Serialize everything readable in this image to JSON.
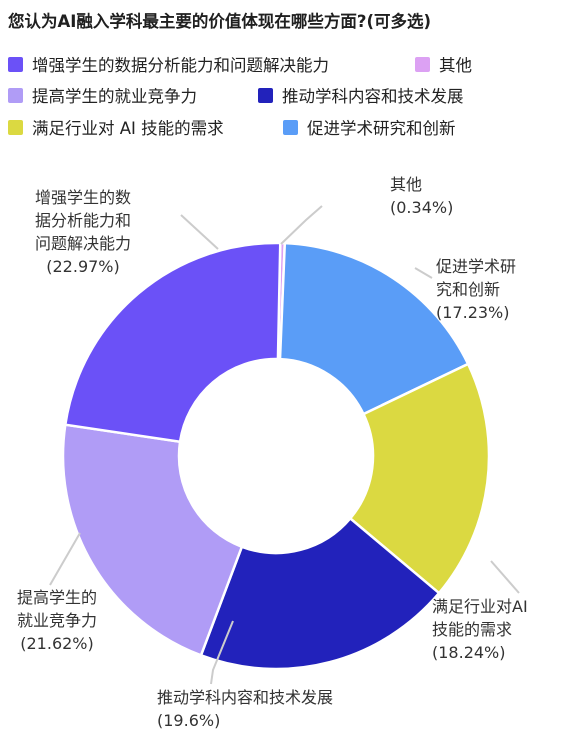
{
  "chart_data": {
    "type": "pie",
    "title": "您认为AI融入学科最主要的价值体现在哪些方面?(可多选)",
    "legend_position": "top",
    "slices": [
      {
        "legend": "增强学生的数据分析能力和问题解决能力",
        "callout_lines": [
          "增强学生的数",
          "据分析能力和",
          "问题解决能力"
        ],
        "pct_text": "(22.97%)",
        "value": 22.97,
        "color": "#6b51f7"
      },
      {
        "legend": "其他",
        "callout_lines": [
          "其他"
        ],
        "pct_text": "(0.34%)",
        "value": 0.34,
        "color": "#dca1f3"
      },
      {
        "legend": "提高学生的就业竞争力",
        "callout_lines": [
          "提高学生的",
          "就业竞争力"
        ],
        "pct_text": "(21.62%)",
        "value": 21.62,
        "color": "#b09cf6"
      },
      {
        "legend": "推动学科内容和技术发展",
        "callout_lines": [
          "推动学科内容和技术发展"
        ],
        "pct_text": "(19.6%)",
        "value": 19.6,
        "color": "#2222bb"
      },
      {
        "legend": "满足行业对 AI 技能的需求",
        "callout_lines": [
          "满足行业对AI",
          "技能的需求"
        ],
        "pct_text": "(18.24%)",
        "value": 18.24,
        "color": "#dbd941"
      },
      {
        "legend": "促进学术研究和创新",
        "callout_lines": [
          "促进学术研",
          "究和创新"
        ],
        "pct_text": "(17.23%)",
        "value": 17.23,
        "color": "#5a9df7"
      }
    ],
    "draw_order": [
      1,
      5,
      4,
      3,
      2,
      0
    ]
  }
}
